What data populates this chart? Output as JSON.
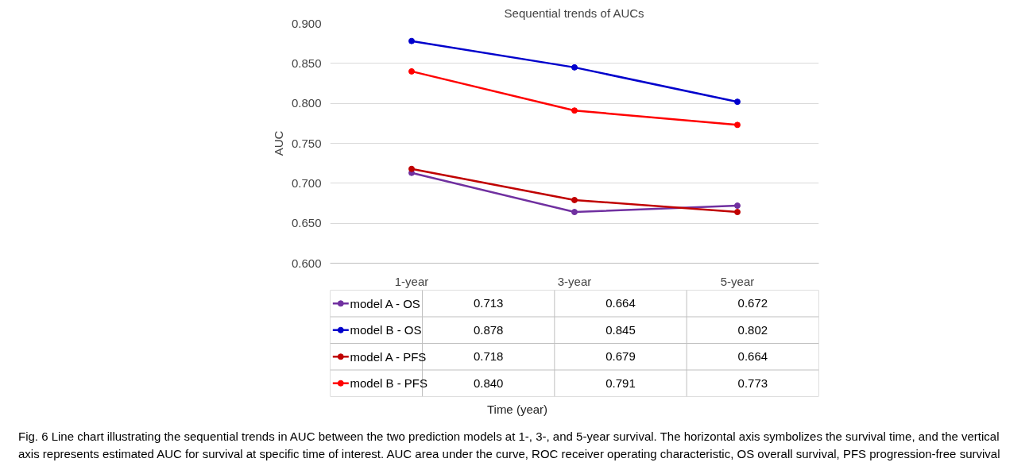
{
  "chart_data": {
    "type": "line",
    "title": "Sequential trends of AUCs",
    "ylabel": "AUC",
    "categories": [
      "1-year",
      "3-year",
      "5-year"
    ],
    "series": [
      {
        "name": "model A - OS",
        "color": "#7030a0",
        "values": [
          0.713,
          0.664,
          0.672
        ],
        "value_labels": [
          "0.713",
          "0.664",
          "0.672"
        ]
      },
      {
        "name": "model B - OS",
        "color": "#0000cc",
        "values": [
          0.878,
          0.845,
          0.802
        ],
        "value_labels": [
          "0.878",
          "0.845",
          "0.802"
        ]
      },
      {
        "name": "model A - PFS",
        "color": "#c00000",
        "values": [
          0.718,
          0.679,
          0.664
        ],
        "value_labels": [
          "0.718",
          "0.679",
          "0.664"
        ]
      },
      {
        "name": "model B - PFS",
        "color": "#ff0000",
        "values": [
          0.84,
          0.791,
          0.773
        ],
        "value_labels": [
          "0.840",
          "0.791",
          "0.773"
        ]
      }
    ],
    "ylim": [
      0.6,
      0.9
    ],
    "yticks": [
      {
        "value": 0.6,
        "label": "0.600"
      },
      {
        "value": 0.65,
        "label": "0.650"
      },
      {
        "value": 0.7,
        "label": "0.700"
      },
      {
        "value": 0.75,
        "label": "0.750"
      },
      {
        "value": 0.8,
        "label": "0.800"
      },
      {
        "value": 0.85,
        "label": "0.850"
      },
      {
        "value": 0.9,
        "label": "0.900"
      }
    ],
    "grid": "y",
    "legend": "bottom",
    "marker": "circle",
    "line_style": "solid",
    "annotations": [
      "Time (year)",
      "Fig. 6 Line chart illustrating the sequential trends in AUC between the two prediction models at 1-, 3-, and 5-year survival. The horizontal axis symbolizes the survival time, and the vertical axis represents estimated AUC for survival at specific time of interest. AUC area under the curve, ROC receiver operating characteristic, OS overall survival, PFS progression-free survival"
    ]
  }
}
